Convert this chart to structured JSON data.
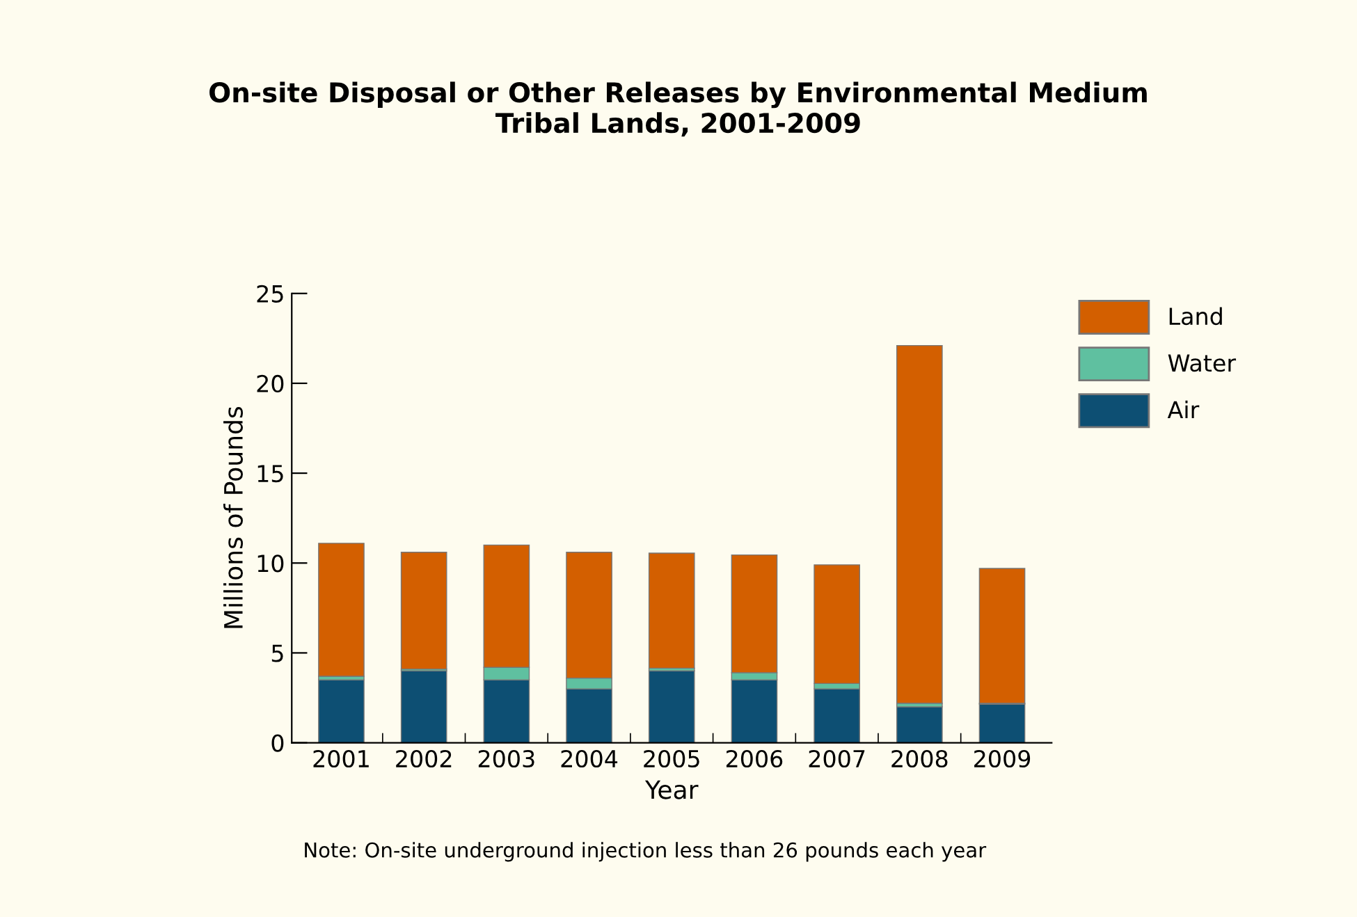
{
  "chart_data": {
    "type": "bar",
    "title": "On-site Disposal or Other Releases by Environmental Medium\nTribal Lands, 2001-2009",
    "xlabel": "Year",
    "ylabel": "Millions of Pounds",
    "categories": [
      "2001",
      "2002",
      "2003",
      "2004",
      "2005",
      "2006",
      "2007",
      "2008",
      "2009"
    ],
    "series": [
      {
        "name": "Air",
        "color": "#0d4f73",
        "values": [
          3.5,
          4.0,
          3.5,
          3.0,
          4.0,
          3.5,
          3.0,
          2.0,
          2.15
        ]
      },
      {
        "name": "Water",
        "color": "#5fc0a0",
        "values": [
          0.2,
          0.1,
          0.7,
          0.6,
          0.15,
          0.4,
          0.3,
          0.2,
          0.05
        ]
      },
      {
        "name": "Land",
        "color": "#d35f00",
        "values": [
          7.4,
          6.5,
          6.8,
          7.0,
          6.4,
          6.55,
          6.6,
          19.9,
          7.5
        ]
      }
    ],
    "stacked": true,
    "ylim": [
      0,
      25
    ],
    "yticks": [
      0,
      5,
      10,
      15,
      20,
      25
    ],
    "grid": false,
    "legend": "top right",
    "annotations": [
      "Note: On-site underground injection less than 26 pounds each year"
    ]
  }
}
